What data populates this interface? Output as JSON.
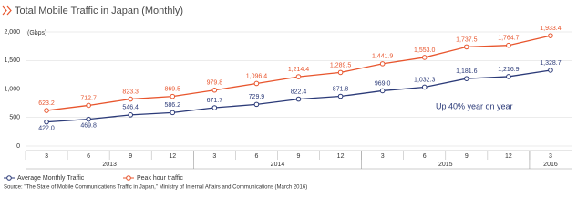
{
  "chart_data": {
    "type": "line",
    "title": "Total Mobile Traffic in Japan (Monthly)",
    "y_unit": "(Gbps)",
    "categories": [
      "3",
      "6",
      "9",
      "12",
      "3",
      "6",
      "9",
      "12",
      "3",
      "6",
      "9",
      "12",
      "3"
    ],
    "years": [
      "2013",
      "2014",
      "2015",
      "2016"
    ],
    "series": [
      {
        "name": "Average Monthly Traffic",
        "color": "#2b3a78",
        "values": [
          422.0,
          469.8,
          546.4,
          586.2,
          671.7,
          729.9,
          822.4,
          871.8,
          969.0,
          1032.3,
          1181.6,
          1216.9,
          1328.7
        ],
        "value_labels": [
          "422.0",
          "469.8",
          "546.4",
          "586.2",
          "671.7",
          "729.9",
          "822.4",
          "871.8",
          "969.0",
          "1,032.3",
          "1,181.6",
          "1,216.9",
          "1,328.7"
        ]
      },
      {
        "name": "Peak hour traffic",
        "color": "#e8552d",
        "values": [
          623.2,
          712.7,
          823.3,
          869.5,
          979.8,
          1096.4,
          1214.4,
          1289.5,
          1441.9,
          1553.0,
          1737.5,
          1764.7,
          1933.4
        ],
        "value_labels": [
          "623.2",
          "712.7",
          "823.3",
          "869.5",
          "979.8",
          "1,096.4",
          "1,214.4",
          "1,289.5",
          "1,441.9",
          "1,553.0",
          "1,737.5",
          "1,764.7",
          "1,933.4"
        ]
      }
    ],
    "ylim": [
      0,
      2000
    ],
    "yticks": [
      0,
      500,
      {
        "value": 1000,
        "label": "1,000"
      },
      {
        "value": 1500,
        "label": "1,500"
      },
      {
        "value": 2000,
        "label": "2,000"
      }
    ],
    "grid": true,
    "annotation": "Up 40% year on year",
    "source": "Source: \"The State of Mobile Communications Traffic in Japan,\" Ministry of Internal Affairs and Communications (March 2016)"
  }
}
